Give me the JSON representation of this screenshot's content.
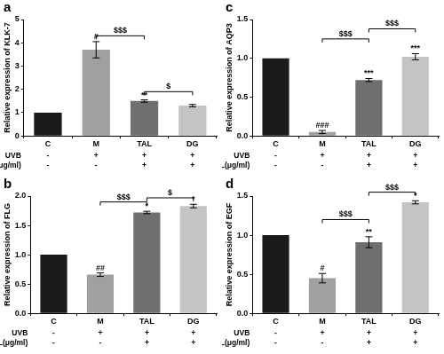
{
  "chart_data": [
    {
      "type": "bar",
      "panel": "a",
      "y_label": "Relative expression of KLK-7",
      "categories": [
        "C",
        "M",
        "TAL",
        "DG"
      ],
      "values": [
        1,
        3.7,
        1.5,
        1.3
      ],
      "errors": [
        0,
        0.35,
        0.05,
        0.05
      ],
      "colors": [
        "#1a1a1a",
        "#a0a0a0",
        "#6f6f6f",
        "#c4c4c4"
      ],
      "ylim": [
        0,
        5
      ],
      "yticks": [
        0,
        1,
        2,
        3,
        4,
        5
      ],
      "grid": false,
      "significance": [
        "",
        "#",
        "**",
        ""
      ],
      "brackets": [
        {
          "from": "M",
          "to": "TAL",
          "y": 4.3,
          "label": "$$$"
        },
        {
          "from": "TAL",
          "to": "DG",
          "y": 1.9,
          "label": "$"
        }
      ],
      "condition_rows": [
        {
          "label": "UVB",
          "values": [
            "-",
            "+",
            "+",
            "+"
          ]
        },
        {
          "label": "TAL(μg/ml)",
          "values": [
            "-",
            "-",
            "+",
            "+"
          ]
        }
      ]
    },
    {
      "type": "bar",
      "panel": "c",
      "y_label": "Relative expression of AQP3",
      "categories": [
        "C",
        "M",
        "TAL",
        "DG"
      ],
      "values": [
        1,
        0.05,
        0.72,
        1.02
      ],
      "errors": [
        0,
        0.02,
        0.02,
        0.04
      ],
      "colors": [
        "#1a1a1a",
        "#a0a0a0",
        "#6f6f6f",
        "#c4c4c4"
      ],
      "ylim": [
        0,
        1.5
      ],
      "yticks": [
        {
          "value": 0,
          "label": "0.0"
        },
        0.5,
        {
          "value": 1,
          "label": "1.0"
        },
        1.5
      ],
      "grid": false,
      "significance": [
        "",
        "###",
        "***",
        "***"
      ],
      "brackets": [
        {
          "from": "M",
          "to": "TAL",
          "y": 1.25,
          "label": "$$$"
        },
        {
          "from": "TAL",
          "to": "DG",
          "y": 1.38,
          "label": "$$$"
        }
      ],
      "condition_rows": [
        {
          "label": "UVB",
          "values": [
            "-",
            "+",
            "+",
            "+"
          ]
        },
        {
          "label": "TAL(μg/ml)",
          "values": [
            "-",
            "-",
            "+",
            "+"
          ]
        }
      ]
    },
    {
      "type": "bar",
      "panel": "b",
      "y_label": "Relative expression of FLG",
      "categories": [
        "C",
        "M",
        "TAL",
        "DG"
      ],
      "values": [
        1,
        0.66,
        1.72,
        1.83
      ],
      "errors": [
        0,
        0.03,
        0.02,
        0.03
      ],
      "colors": [
        "#1a1a1a",
        "#a0a0a0",
        "#6f6f6f",
        "#c4c4c4"
      ],
      "ylim": [
        0,
        2
      ],
      "yticks": [
        {
          "value": 0,
          "label": "0.0"
        },
        0.5,
        {
          "value": 1,
          "label": "1.0"
        },
        1.5,
        {
          "value": 2,
          "label": "2.0"
        }
      ],
      "grid": false,
      "significance": [
        "",
        "##",
        "*",
        "*"
      ],
      "brackets": [
        {
          "from": "M",
          "to": "TAL",
          "y": 1.9,
          "label": "$$$"
        },
        {
          "from": "TAL",
          "to": "DG",
          "y": 1.97,
          "label": "$"
        }
      ],
      "condition_rows": [
        {
          "label": "UVB",
          "values": [
            "-",
            "+",
            "+",
            "+"
          ]
        },
        {
          "label": "TAL(μg/ml)",
          "values": [
            "-",
            "-",
            "+",
            "+"
          ]
        }
      ]
    },
    {
      "type": "bar",
      "panel": "d",
      "y_label": "Relative expression of EGF",
      "categories": [
        "C",
        "M",
        "TAL",
        "DG"
      ],
      "values": [
        1,
        0.45,
        0.91,
        1.42
      ],
      "errors": [
        0,
        0.06,
        0.07,
        0.02
      ],
      "colors": [
        "#1a1a1a",
        "#a0a0a0",
        "#6f6f6f",
        "#c4c4c4"
      ],
      "ylim": [
        0,
        1.5
      ],
      "yticks": [
        {
          "value": 0,
          "label": "0.0"
        },
        0.5,
        {
          "value": 1,
          "label": "1.0"
        },
        1.5
      ],
      "grid": false,
      "significance": [
        "",
        "#",
        "**",
        "*"
      ],
      "brackets": [
        {
          "from": "M",
          "to": "TAL",
          "y": 1.2,
          "label": "$$$"
        },
        {
          "from": "TAL",
          "to": "DG",
          "y": 1.55,
          "label": "$$$"
        }
      ],
      "condition_rows": [
        {
          "label": "UVB",
          "values": [
            "-",
            "+",
            "+",
            "+"
          ]
        },
        {
          "label": "TAL(μg/ml)",
          "values": [
            "-",
            "-",
            "+",
            "+"
          ]
        }
      ]
    }
  ]
}
